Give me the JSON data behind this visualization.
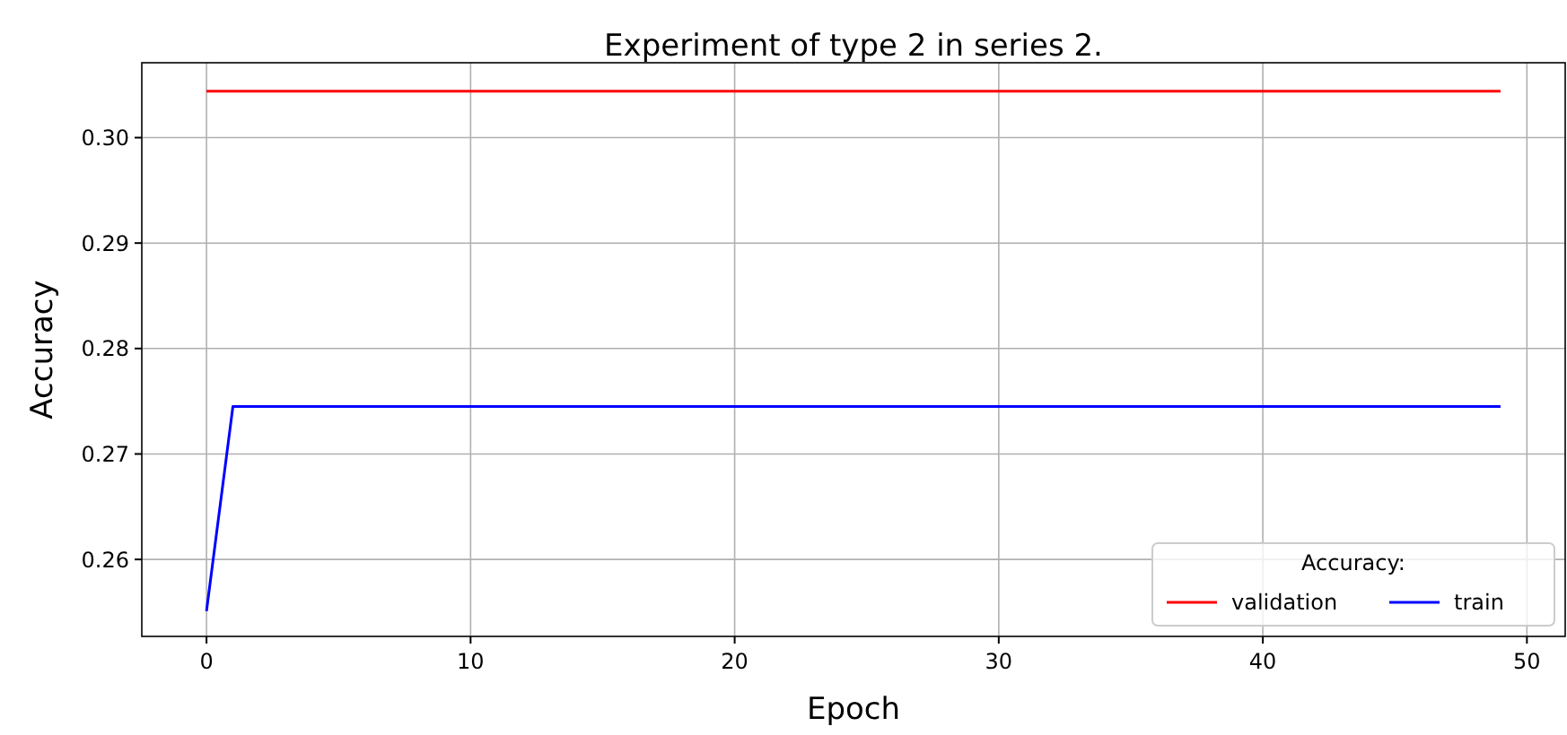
{
  "chart_data": {
    "type": "line",
    "title": "Experiment of type 2 in series 2.",
    "xlabel": "Epoch",
    "ylabel": "Accuracy",
    "legend_title": "Accuracy:",
    "legend": "bottom right",
    "grid": true,
    "xlim": [
      -2.45,
      51.45
    ],
    "xticks": [
      0,
      10,
      20,
      30,
      40,
      50
    ],
    "ylim": [
      0.2527,
      0.3071
    ],
    "yticks": [
      {
        "value": 0.26,
        "label": "0.26"
      },
      {
        "value": 0.27,
        "label": "0.27"
      },
      {
        "value": 0.28,
        "label": "0.28"
      },
      {
        "value": 0.29,
        "label": "0.29"
      },
      {
        "value": 0.3,
        "label": "0.30"
      }
    ],
    "series": [
      {
        "name": "validation",
        "color": "#ff0000",
        "x": [
          0,
          49
        ],
        "values": [
          0.3044,
          0.3044
        ]
      },
      {
        "name": "train",
        "color": "#0000ff",
        "x": [
          0,
          1,
          49
        ],
        "values": [
          0.2551,
          0.2745,
          0.2745
        ]
      }
    ]
  }
}
